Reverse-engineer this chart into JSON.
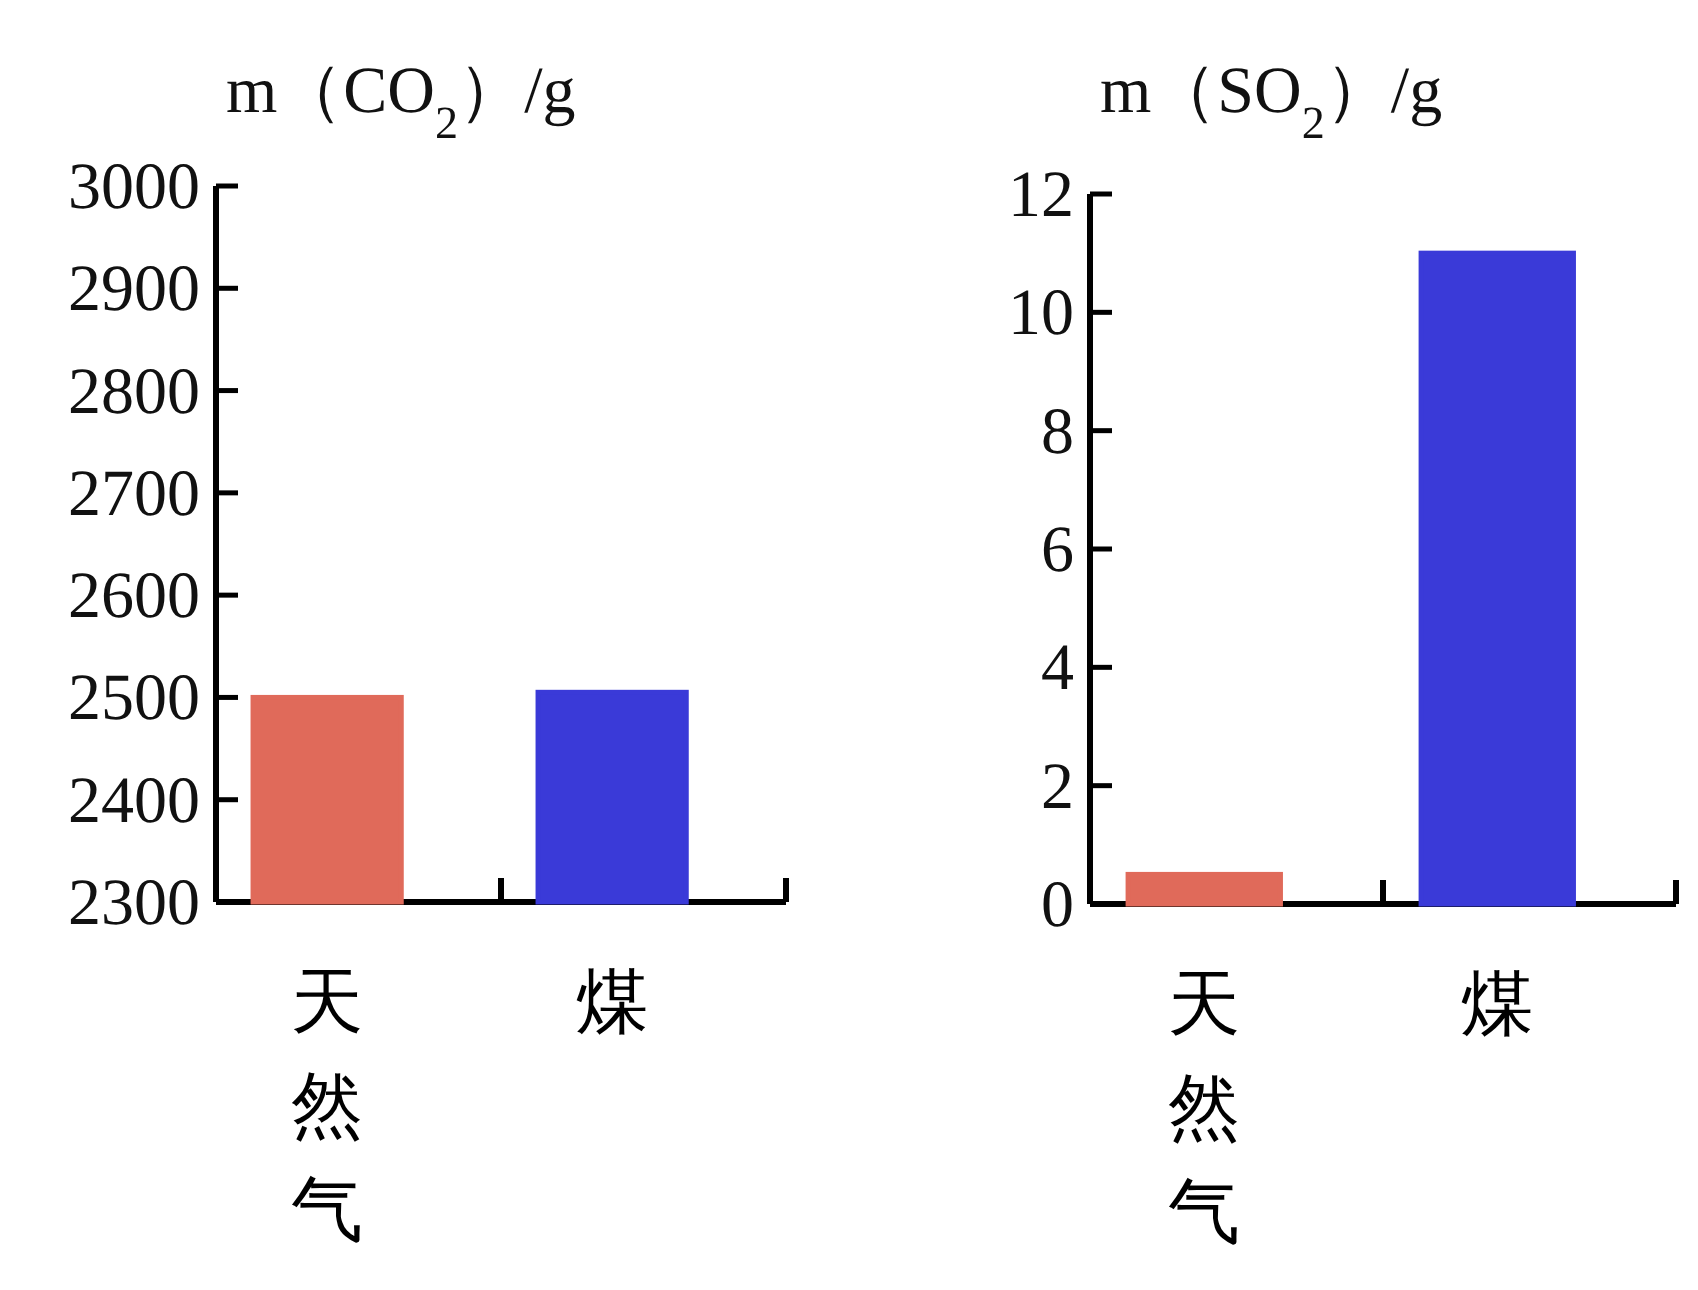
{
  "chart_data": [
    {
      "type": "bar",
      "ylabel": "m（CO$_{2}$）/g",
      "categories": [
        "天然气",
        "煤"
      ],
      "values": [
        2500,
        2505
      ],
      "colors": [
        "#e06a5a",
        "#3a3ad8"
      ],
      "ylim": [
        2300,
        3000
      ],
      "yticks": [
        2300,
        2400,
        2500,
        2600,
        2700,
        2800,
        2900,
        3000
      ]
    },
    {
      "type": "bar",
      "ylabel": "m（SO$_{2}$）/g",
      "categories": [
        "天然气",
        "煤"
      ],
      "values": [
        0.5,
        11
      ],
      "colors": [
        "#e06a5a",
        "#3a3ad8"
      ],
      "ylim": [
        0,
        12
      ],
      "yticks": [
        0,
        2,
        4,
        6,
        8,
        10,
        12
      ]
    }
  ]
}
